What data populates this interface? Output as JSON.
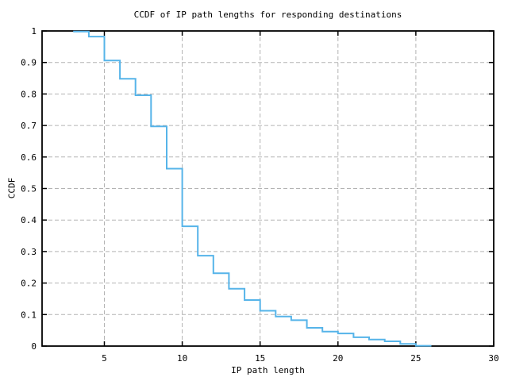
{
  "chart_data": {
    "type": "line",
    "subtype": "ccdf-step",
    "title": "CCDF of IP path lengths for responding destinations",
    "xlabel": "IP path length",
    "ylabel": "CCDF",
    "xlim": [
      1,
      30
    ],
    "ylim": [
      0,
      1
    ],
    "grid": true,
    "legend": "none",
    "line_color": "#56b4e9",
    "grid_color": "#b3b3b3",
    "axis_color": "#000000",
    "xtick_values": [
      5,
      10,
      15,
      20,
      25,
      30
    ],
    "xtick_labels": [
      "5",
      "10",
      "15",
      "20",
      "25",
      "30"
    ],
    "ytick_values": [
      0,
      0.1,
      0.2,
      0.3,
      0.4,
      0.5,
      0.6,
      0.7,
      0.8,
      0.9,
      1
    ],
    "ytick_labels": [
      "0",
      "0.1",
      "0.2",
      "0.3",
      "0.4",
      "0.5",
      "0.6",
      "0.7",
      "0.8",
      "0.9",
      "1"
    ],
    "x": [
      3,
      4,
      5,
      6,
      7,
      8,
      9,
      10,
      11,
      12,
      13,
      14,
      15,
      16,
      17,
      18,
      19,
      20,
      21,
      22,
      23,
      24,
      25
    ],
    "y": [
      0.998,
      0.982,
      0.906,
      0.848,
      0.796,
      0.697,
      0.563,
      0.38,
      0.287,
      0.231,
      0.182,
      0.146,
      0.112,
      0.094,
      0.082,
      0.058,
      0.046,
      0.04,
      0.028,
      0.021,
      0.015,
      0.007,
      0.001
    ],
    "x_end": 26
  }
}
